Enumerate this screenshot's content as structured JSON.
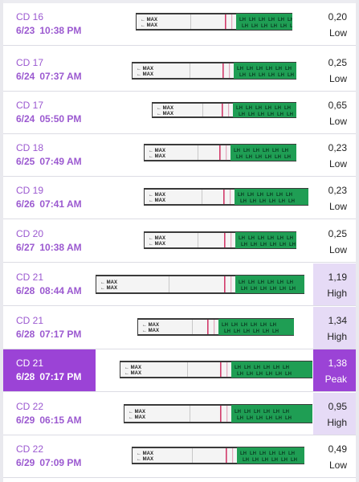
{
  "rows": [
    {
      "cd": "CD 16",
      "date": "6/23",
      "time": "10:38 PM",
      "value": "0,20",
      "level": "Low",
      "state": "normal"
    },
    {
      "cd": "CD 17",
      "date": "6/24",
      "time": "07:37 AM",
      "value": "0,25",
      "level": "Low",
      "state": "normal"
    },
    {
      "cd": "CD 17",
      "date": "6/24",
      "time": "05:50 PM",
      "value": "0,65",
      "level": "Low",
      "state": "normal"
    },
    {
      "cd": "CD 18",
      "date": "6/25",
      "time": "07:49 AM",
      "value": "0,23",
      "level": "Low",
      "state": "normal"
    },
    {
      "cd": "CD 19",
      "date": "6/26",
      "time": "07:41 AM",
      "value": "0,23",
      "level": "Low",
      "state": "normal"
    },
    {
      "cd": "CD 20",
      "date": "6/27",
      "time": "10:38 AM",
      "value": "0,25",
      "level": "Low",
      "state": "normal"
    },
    {
      "cd": "CD 21",
      "date": "6/28",
      "time": "08:44 AM",
      "value": "1,19",
      "level": "High",
      "state": "high"
    },
    {
      "cd": "CD 21",
      "date": "6/28",
      "time": "07:17 PM",
      "value": "1,34",
      "level": "High",
      "state": "high"
    },
    {
      "cd": "CD 21",
      "date": "6/28",
      "time": "07:17 PM",
      "value": "1,38",
      "level": "Peak",
      "state": "peak"
    },
    {
      "cd": "CD 22",
      "date": "6/29",
      "time": "06:15 AM",
      "value": "0,95",
      "level": "High",
      "state": "high"
    },
    {
      "cd": "CD 22",
      "date": "6/29",
      "time": "07:09 PM",
      "value": "0,49",
      "level": "Low",
      "state": "normal"
    }
  ],
  "strip": {
    "max_label": "MAX",
    "brand_text": "LH"
  },
  "colors": {
    "accent": "#9b59d0",
    "peak_bg": "#9b43d6",
    "high_bg": "#e6dbf6",
    "strip_green": "#1f9e54",
    "test_line": "#d23a6a"
  }
}
